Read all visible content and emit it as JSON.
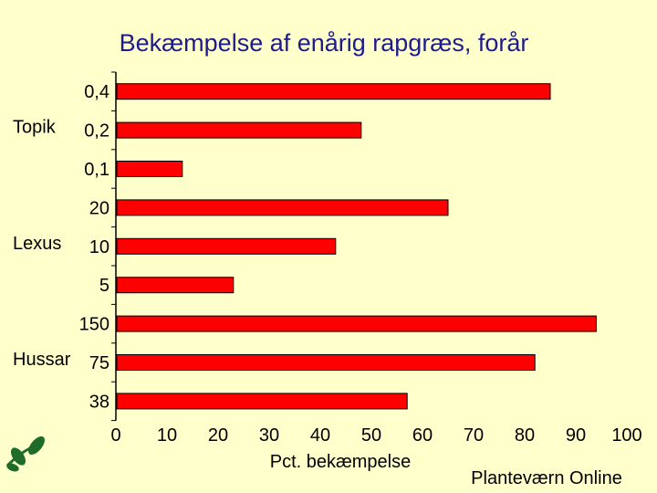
{
  "chart_data": {
    "type": "bar",
    "orientation": "horizontal",
    "title": "Bekæmpelse af enårig rapgræs, forår",
    "xlabel": "Pct. bekæmpelse",
    "ylabel": "",
    "xlim": [
      0,
      100
    ],
    "xticks": [
      "0",
      "10",
      "20",
      "30",
      "40",
      "50",
      "60",
      "70",
      "80",
      "90",
      "100"
    ],
    "grid": false,
    "bar_color": "#ff0000",
    "groups": [
      {
        "name": "Topik",
        "bars": [
          {
            "label": "0,4",
            "value": 85
          },
          {
            "label": "0,2",
            "value": 48
          },
          {
            "label": "0,1",
            "value": 13
          }
        ]
      },
      {
        "name": "Lexus",
        "bars": [
          {
            "label": "20",
            "value": 65
          },
          {
            "label": "10",
            "value": 43
          },
          {
            "label": "5",
            "value": 23
          }
        ]
      },
      {
        "name": "Hussar",
        "bars": [
          {
            "label": "150",
            "value": 94
          },
          {
            "label": "75",
            "value": 82
          },
          {
            "label": "38",
            "value": 57
          }
        ]
      }
    ]
  },
  "footer": {
    "credit": "Planteværn Online",
    "logo_icon": "plant-leaves-logo",
    "logo_color": "#1e6b2a"
  }
}
